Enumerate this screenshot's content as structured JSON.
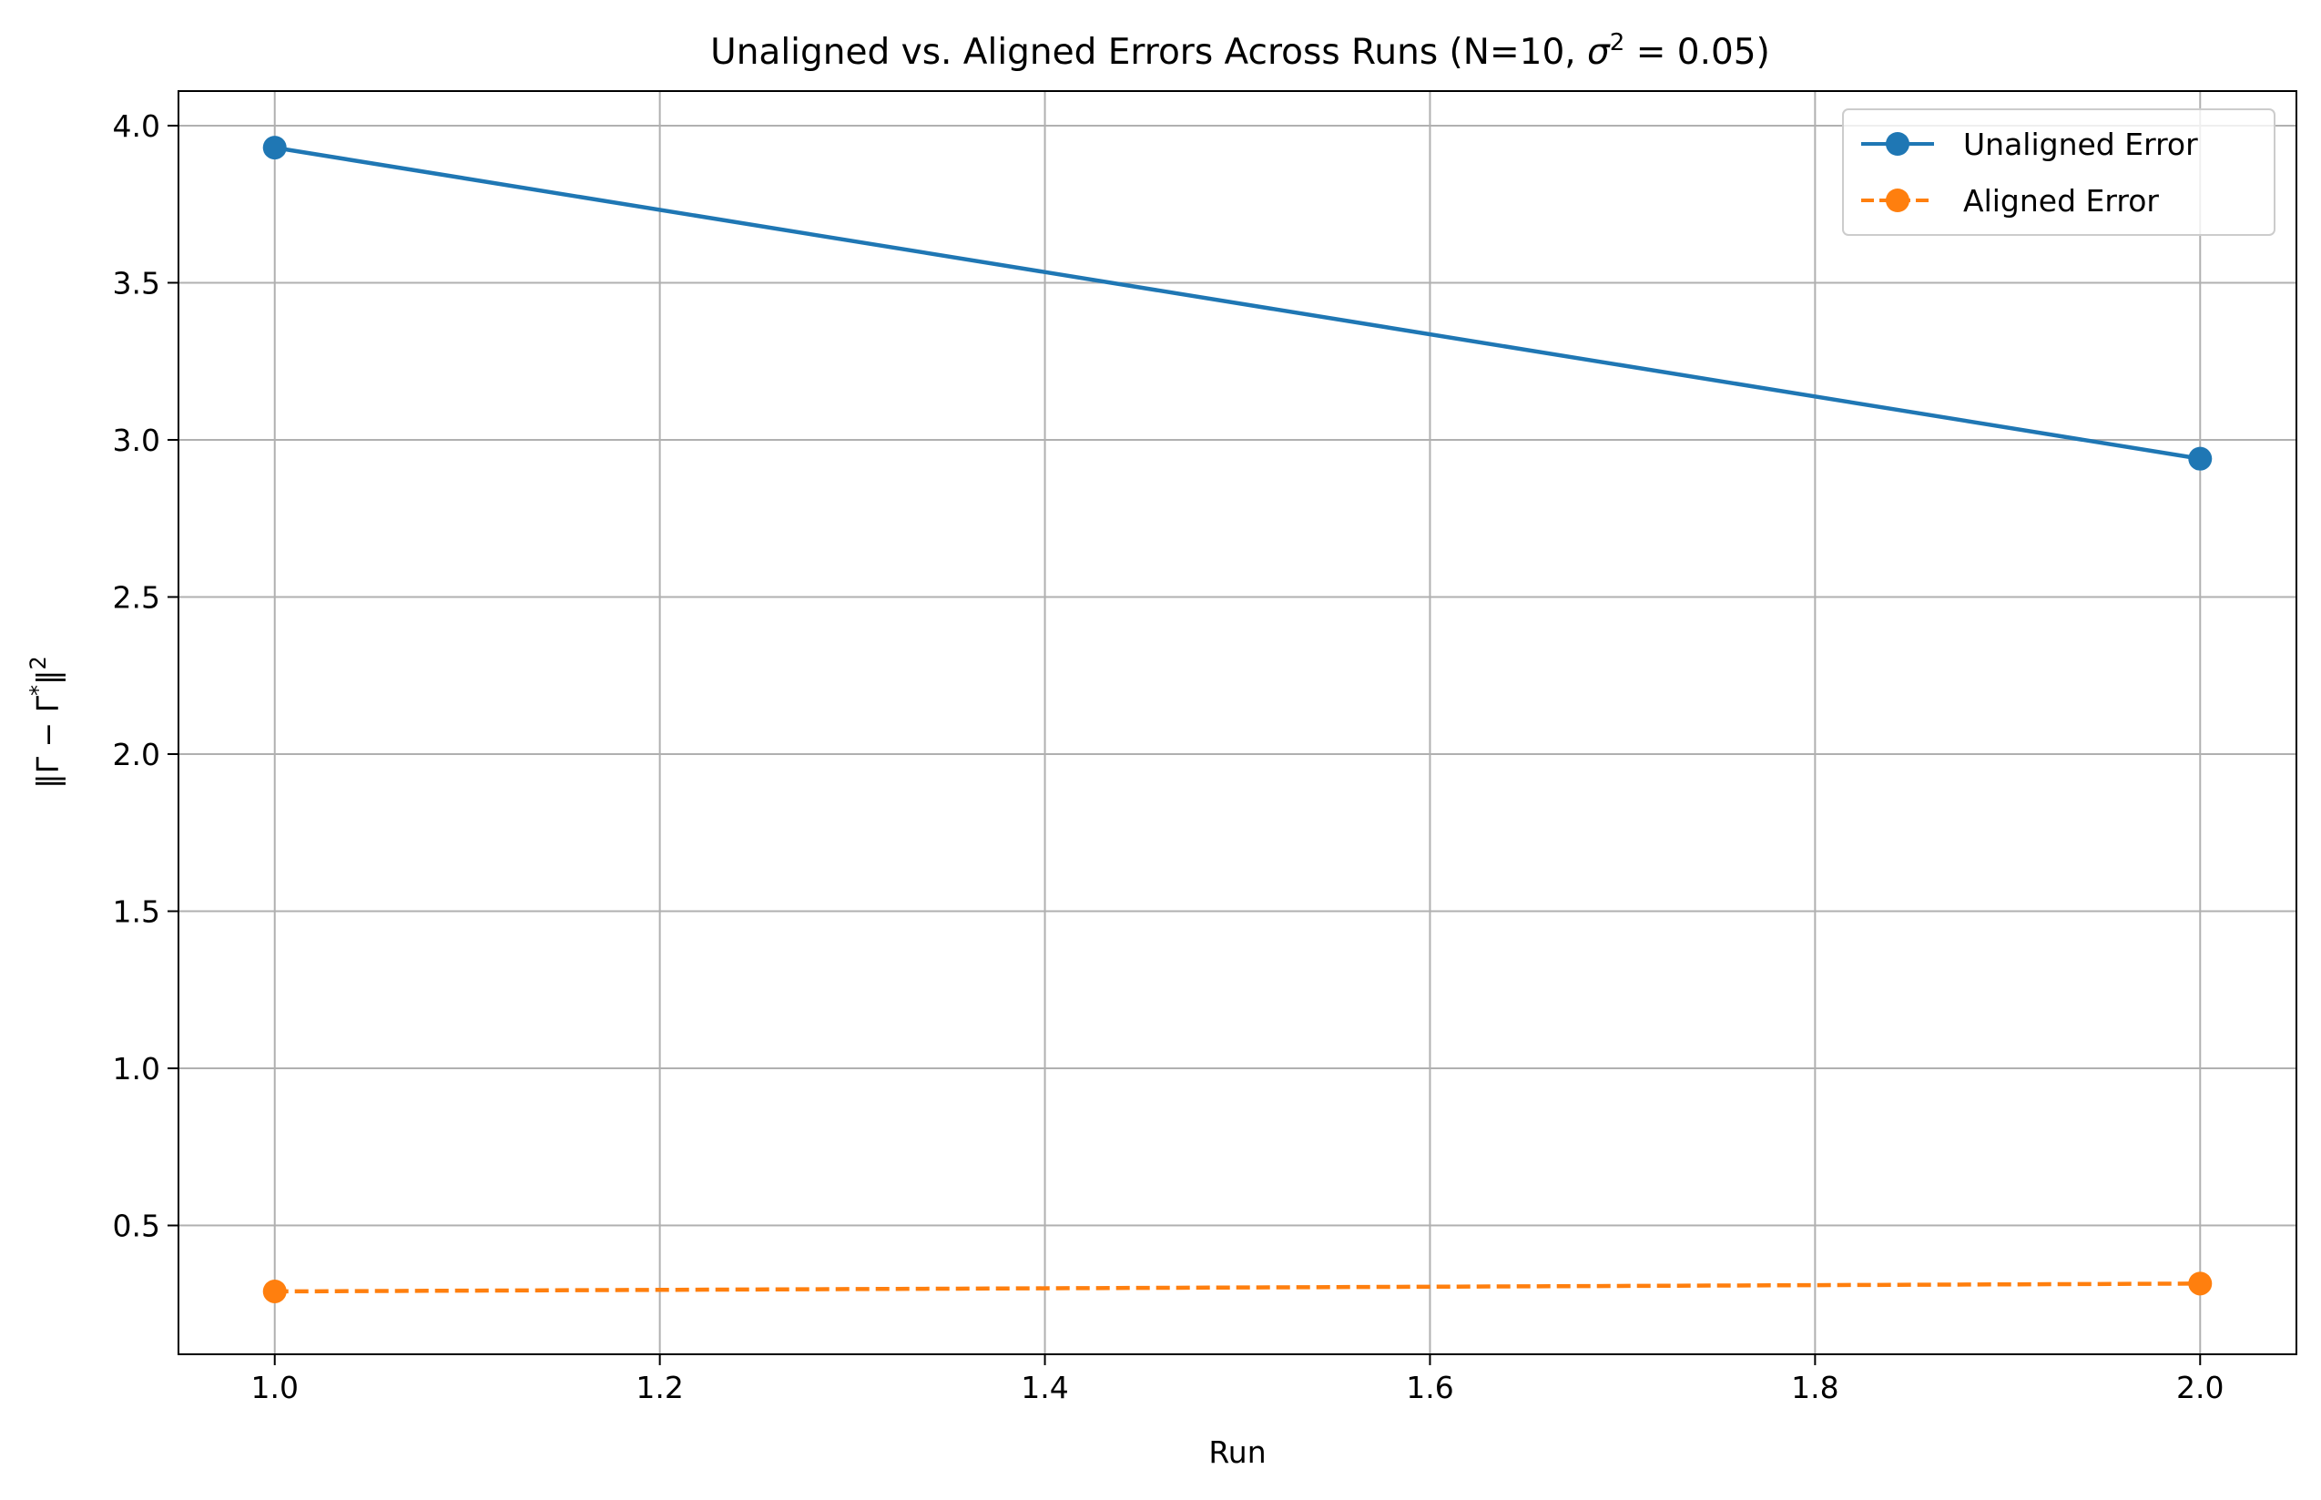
{
  "chart_data": {
    "type": "line",
    "title": "Unaligned vs. Aligned Errors Across Runs (N=10, σ² = 0.05)",
    "title_parts": {
      "prefix": "Unaligned vs. Aligned Errors Across Runs (N=10, ",
      "sigma": "σ",
      "exp": "2",
      "suffix": " = 0.05)"
    },
    "xlabel": "Run",
    "ylabel": "‖Γ − Γ*‖²",
    "ylabel_parts": {
      "main": "‖Γ − Γ",
      "star": "*",
      "close": "‖",
      "exp": "2"
    },
    "xlim": [
      0.95,
      2.05
    ],
    "ylim": [
      0.09,
      4.11
    ],
    "xticks": [
      1.0,
      1.2,
      1.4,
      1.6,
      1.8,
      2.0
    ],
    "xtick_labels": [
      "1.0",
      "1.2",
      "1.4",
      "1.6",
      "1.8",
      "2.0"
    ],
    "yticks": [
      0.5,
      1.0,
      1.5,
      2.0,
      2.5,
      3.0,
      3.5,
      4.0
    ],
    "ytick_labels": [
      "0.5",
      "1.0",
      "1.5",
      "2.0",
      "2.5",
      "3.0",
      "3.5",
      "4.0"
    ],
    "grid": true,
    "legend_position": "top-right",
    "series": [
      {
        "name": "Unaligned Error",
        "x": [
          1.0,
          2.0
        ],
        "y": [
          3.93,
          2.94
        ],
        "color": "#1f77b4",
        "linestyle": "solid",
        "marker": "circle"
      },
      {
        "name": "Aligned Error",
        "x": [
          1.0,
          2.0
        ],
        "y": [
          0.29,
          0.315
        ],
        "color": "#ff7f0e",
        "linestyle": "dashed",
        "marker": "circle"
      }
    ]
  }
}
